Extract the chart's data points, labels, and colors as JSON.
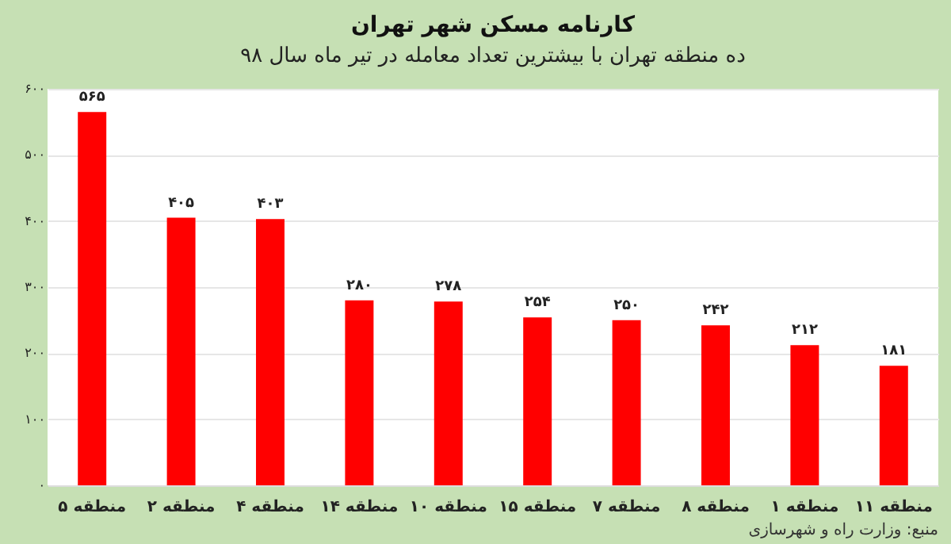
{
  "chart_data": {
    "type": "bar",
    "title": "کارنامه مسکن شهر تهران",
    "subtitle": "ده منطقه تهران با بیشترین تعداد معامله در تیر ماه سال ۹۸",
    "categories": [
      "منطقه ۵",
      "منطقه ۲",
      "منطقه ۴",
      "منطقه ۱۴",
      "منطقه ۱۰",
      "منطقه ۱۵",
      "منطقه ۷",
      "منطقه ۸",
      "منطقه ۱",
      "منطقه ۱۱"
    ],
    "values": [
      565,
      405,
      403,
      280,
      278,
      254,
      250,
      242,
      212,
      181
    ],
    "value_labels": [
      "۵۶۵",
      "۴۰۵",
      "۴۰۳",
      "۲۸۰",
      "۲۷۸",
      "۲۵۴",
      "۲۵۰",
      "۲۴۲",
      "۲۱۲",
      "۱۸۱"
    ],
    "color": "#ff0000",
    "ylim": [
      0,
      600
    ],
    "yticks": [
      {
        "value": 0,
        "label": "۰"
      },
      {
        "value": 100,
        "label": "۱۰۰"
      },
      {
        "value": 200,
        "label": "۲۰۰"
      },
      {
        "value": 300,
        "label": "۳۰۰"
      },
      {
        "value": 400,
        "label": "۴۰۰"
      },
      {
        "value": 500,
        "label": "۵۰۰"
      },
      {
        "value": 600,
        "label": "۶۰۰"
      }
    ],
    "grid": "y",
    "annotations": [
      "منبع: وزارت راه و شهرسازی"
    ]
  }
}
